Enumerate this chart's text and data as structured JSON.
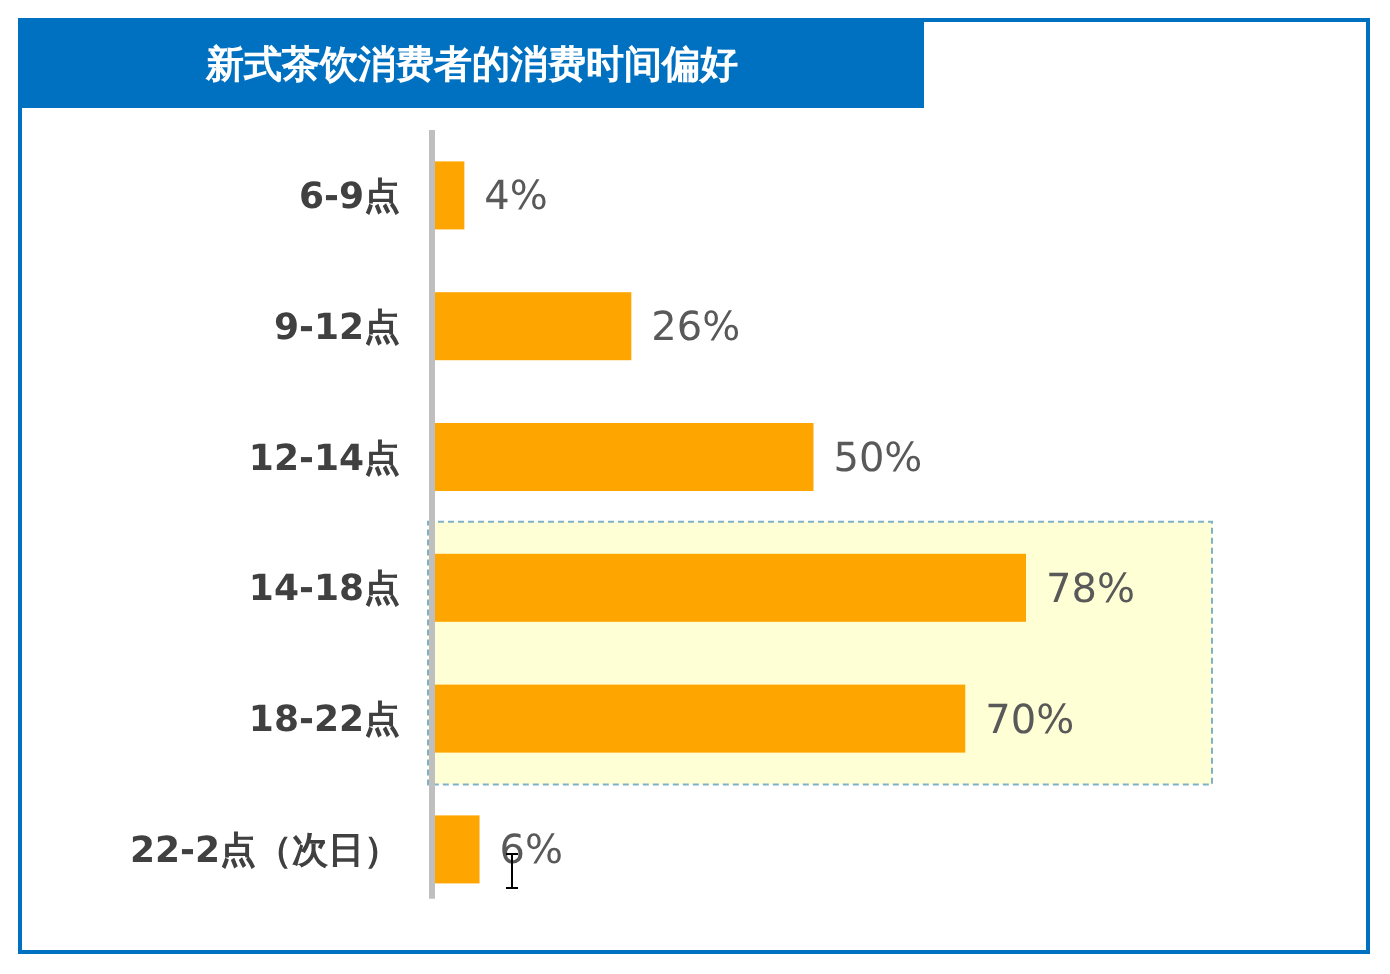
{
  "chart_data": {
    "type": "bar",
    "orientation": "horizontal",
    "title": "新式茶饮消费者的消费时间偏好",
    "categories": [
      "6-9点",
      "9-12点",
      "12-14点",
      "14-18点",
      "18-22点",
      "22-2点（次日）"
    ],
    "values": [
      4,
      26,
      50,
      78,
      70,
      6
    ],
    "value_labels": [
      "4%",
      "26%",
      "50%",
      "78%",
      "70%",
      "6%"
    ],
    "color": "#ffa500",
    "bands": [
      {
        "axis": "y",
        "from": "14-18点",
        "to": "18-22点",
        "color": "#ffffd5"
      }
    ]
  }
}
